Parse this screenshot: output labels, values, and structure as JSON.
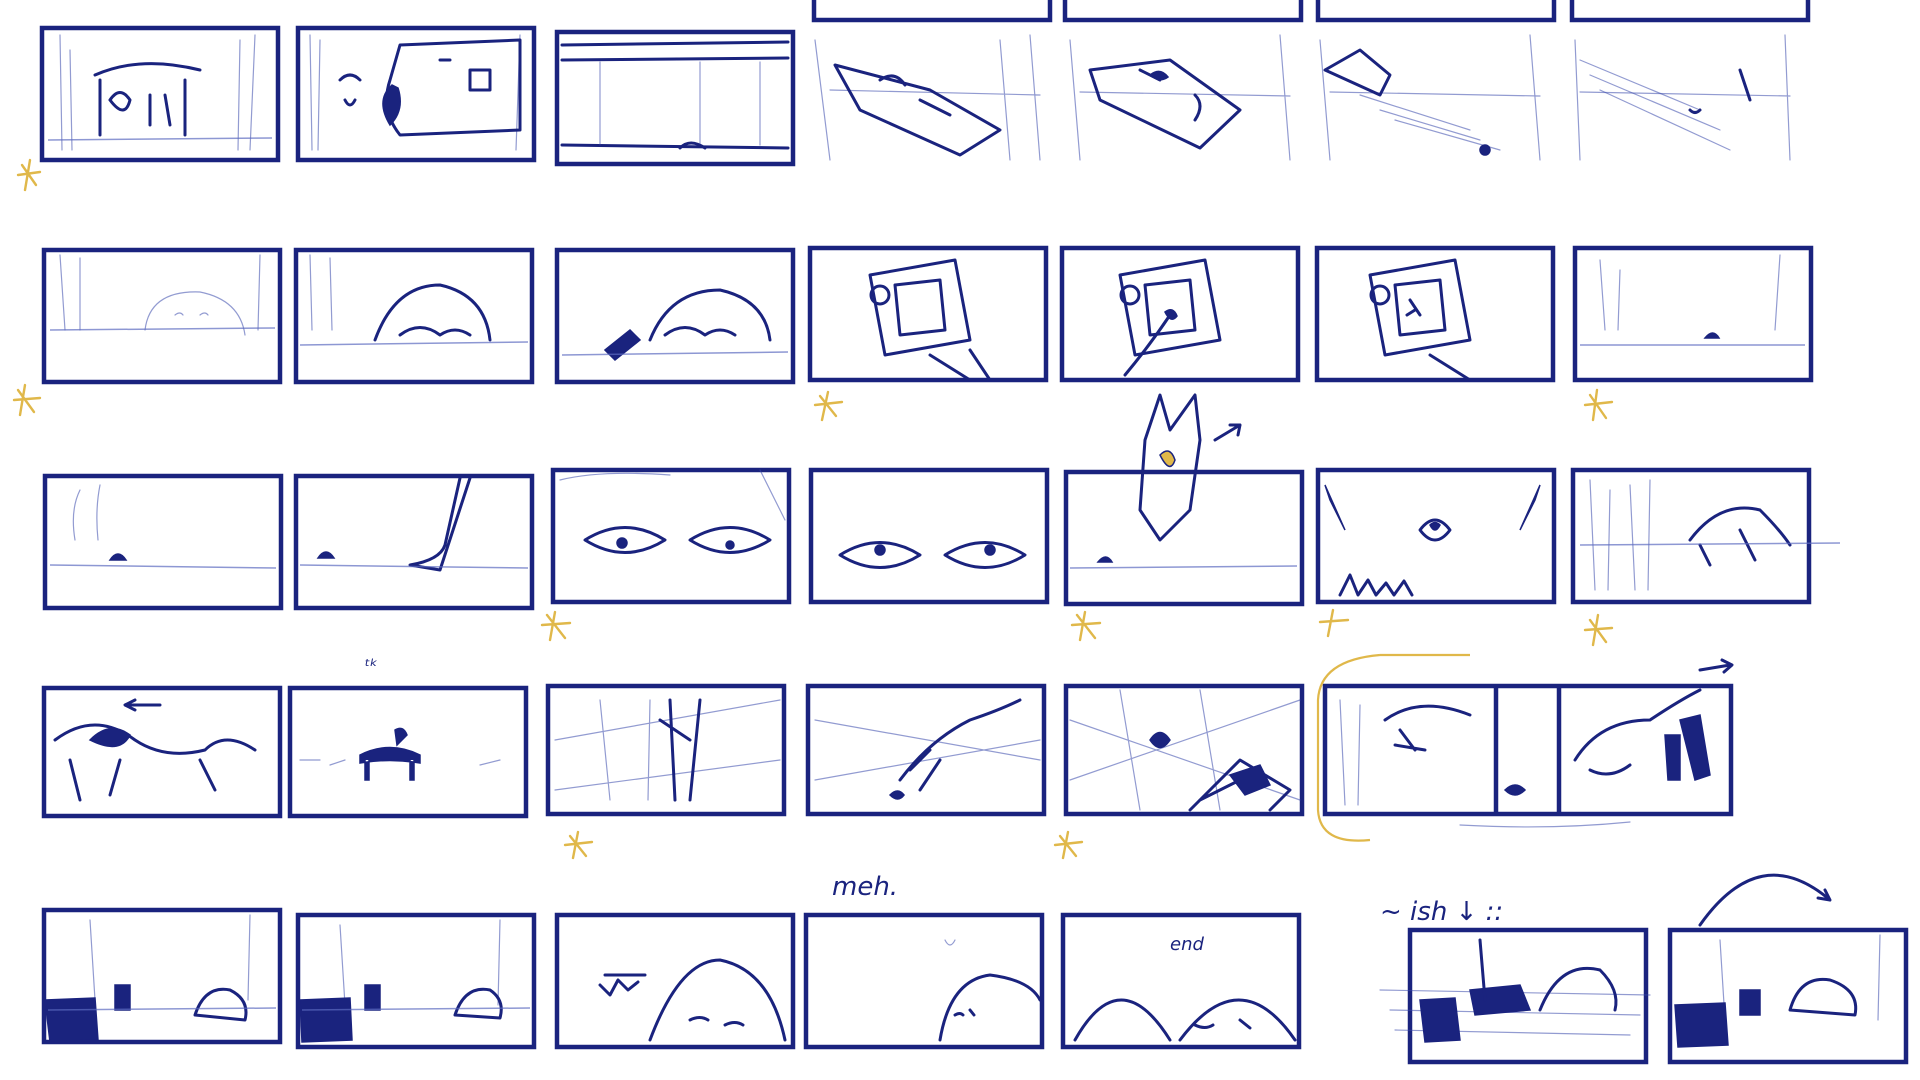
{
  "sheet": {
    "ink_color": "#1a237e",
    "sketch_color": "#3949ab",
    "accent_color": "#e0b84a",
    "background": "#ffffff"
  },
  "annotations": {
    "note_meh": "meh.",
    "note_end": "end",
    "note_ish": "~ ish ↓ ::",
    "note_tick": "ᵗᵏ"
  },
  "rows": [
    {
      "panels": [
        "kennel-exterior",
        "truck-arrives",
        "truck-side-closeup",
        "truck-bounce-1",
        "truck-bounce-2",
        "truck-bounce-3",
        "truck-leaves"
      ]
    },
    {
      "panels": [
        "creature-peek-1",
        "creature-peek-2",
        "creature-paw-reach",
        "phone-screen-1",
        "phone-screen-2",
        "phone-screen-3",
        "empty-field-object"
      ]
    },
    {
      "panels": [
        "ground-object",
        "foot-steps-in",
        "eyes-open-wide",
        "eyes-look-side",
        "fox-creature-appears",
        "face-closeup-teeth",
        "grass-runner"
      ]
    },
    {
      "panels": [
        "chase-left",
        "distant-figure",
        "grass-poles",
        "struggle-closeup",
        "tumble-attack",
        "split-panel-sequence"
      ]
    },
    {
      "panels": [
        "kennel-return-1",
        "kennel-return-2",
        "creature-sleeps",
        "creature-peeks-edge",
        "creature-end-rest",
        "alt-ending-1",
        "alt-ending-2"
      ]
    }
  ]
}
